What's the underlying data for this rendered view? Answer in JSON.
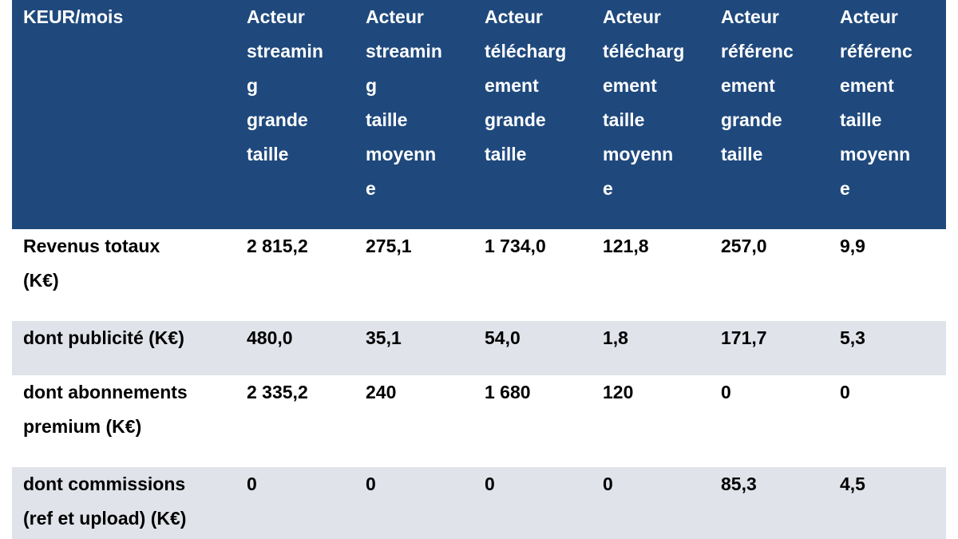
{
  "table": {
    "header": [
      "KEUR/mois",
      "Acteur\nstreamin\ng\ngrande\ntaille",
      "Acteur\nstreamin\ng\ntaille\nmoyenn\ne",
      "Acteur\ntélécharg\nement\ngrande\ntaille",
      "Acteur\ntélécharg\nement\ntaille\nmoyenn\ne",
      "Acteur\nréférenc\nement\ngrande\ntaille",
      "Acteur\nréférenc\nement\ntaille\nmoyenn\ne"
    ],
    "rows": [
      [
        "Revenus totaux\n(K€)",
        "2 815,2",
        "275,1",
        "1 734,0",
        "121,8",
        "257,0",
        "9,9"
      ],
      [
        "dont publicité (K€)",
        "480,0",
        "35,1",
        "54,0",
        "1,8",
        "171,7",
        "5,3"
      ],
      [
        "dont abonnements\npremium (K€)",
        "2 335,2",
        "240",
        "1 680",
        "120",
        "0",
        "0"
      ],
      [
        "dont commissions\n(ref et upload) (K€)",
        "0",
        "0",
        "0",
        "0",
        "85,3",
        "4,5"
      ]
    ],
    "colors": {
      "header_bg": "#1f497d",
      "header_text": "#ffffff",
      "row_alt_bg": "#e1e3ea",
      "row_bg": "#ffffff",
      "body_text": "#000000"
    }
  }
}
